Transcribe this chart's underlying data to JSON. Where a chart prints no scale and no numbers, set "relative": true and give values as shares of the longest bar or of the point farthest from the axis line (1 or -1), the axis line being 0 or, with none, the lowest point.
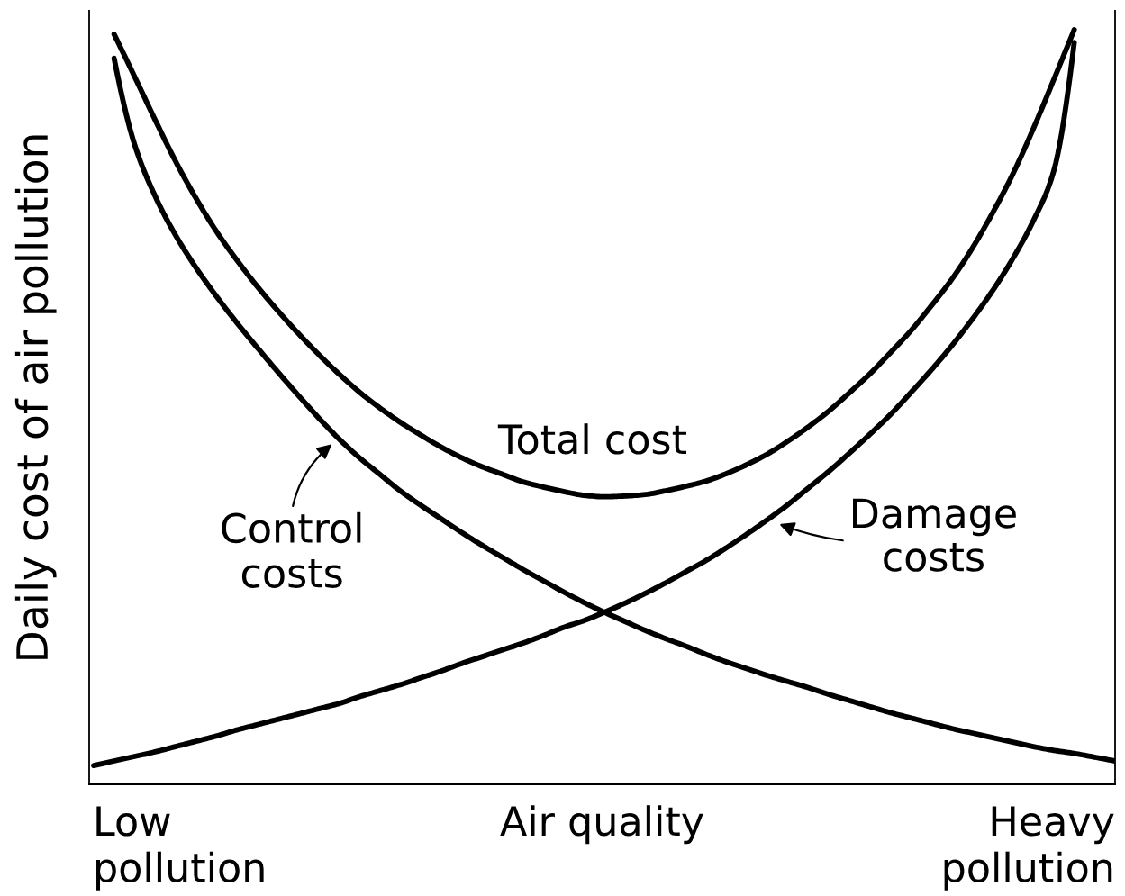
{
  "chart_data": {
    "type": "line",
    "relative": true,
    "xlabel": "Air quality",
    "ylabel": "Daily cost of air pollution",
    "categories": [
      null,
      null,
      null,
      null,
      null,
      null,
      null,
      null,
      null,
      null,
      null,
      null,
      null,
      null,
      null,
      null,
      null,
      null,
      null,
      null,
      null,
      null,
      null,
      null,
      null,
      null,
      null,
      null,
      null,
      null,
      null,
      null,
      null,
      null,
      null,
      null,
      null,
      null,
      null,
      null,
      null,
      null,
      null,
      null,
      null,
      null,
      null,
      null,
      null,
      null,
      null
    ],
    "series": [
      {
        "name": "Control\ncosts",
        "color": "#000000",
        "values": [
          null,
          0.962,
          0.848,
          0.78,
          0.728,
          0.685,
          0.647,
          0.612,
          0.579,
          0.547,
          0.516,
          0.486,
          0.458,
          0.433,
          0.411,
          0.389,
          0.37,
          0.352,
          0.334,
          0.317,
          0.301,
          0.285,
          0.27,
          0.255,
          0.241,
          0.228,
          0.216,
          0.204,
          0.193,
          0.183,
          0.172,
          0.162,
          0.153,
          0.144,
          0.136,
          0.128,
          0.119,
          0.111,
          0.103,
          0.095,
          0.088,
          0.081,
          0.074,
          0.068,
          0.062,
          0.056,
          0.05,
          0.045,
          0.041,
          0.036,
          0.031
        ]
      },
      {
        "name": "Damage\ncosts",
        "color": "#000000",
        "values": [
          0.025,
          0.031,
          0.037,
          0.043,
          0.05,
          0.057,
          0.064,
          0.072,
          0.079,
          0.086,
          0.093,
          0.1,
          0.107,
          0.116,
          0.124,
          0.132,
          0.141,
          0.15,
          0.16,
          0.169,
          0.178,
          0.187,
          0.197,
          0.208,
          0.217,
          0.228,
          0.24,
          0.253,
          0.267,
          0.282,
          0.297,
          0.314,
          0.332,
          0.351,
          0.371,
          0.393,
          0.415,
          0.439,
          0.464,
          0.49,
          0.519,
          0.549,
          0.581,
          0.616,
          0.654,
          0.697,
          0.747,
          0.813,
          0.983,
          null,
          null
        ]
      },
      {
        "name": "Total cost",
        "color": "#000000",
        "values": [
          null,
          0.994,
          0.938,
          0.881,
          0.826,
          0.777,
          0.733,
          0.695,
          0.66,
          0.628,
          0.598,
          0.57,
          0.544,
          0.52,
          0.499,
          0.48,
          0.463,
          0.447,
          0.433,
          0.421,
          0.411,
          0.401,
          0.394,
          0.388,
          0.383,
          0.381,
          0.382,
          0.384,
          0.389,
          0.395,
          0.402,
          0.412,
          0.424,
          0.438,
          0.455,
          0.474,
          0.495,
          0.519,
          0.544,
          0.572,
          0.601,
          0.634,
          0.669,
          0.71,
          0.757,
          0.809,
          0.869,
          0.934,
          1.0,
          null,
          null
        ]
      }
    ],
    "annotations": [
      "Low\npollution",
      "Heavy\npollution"
    ]
  }
}
